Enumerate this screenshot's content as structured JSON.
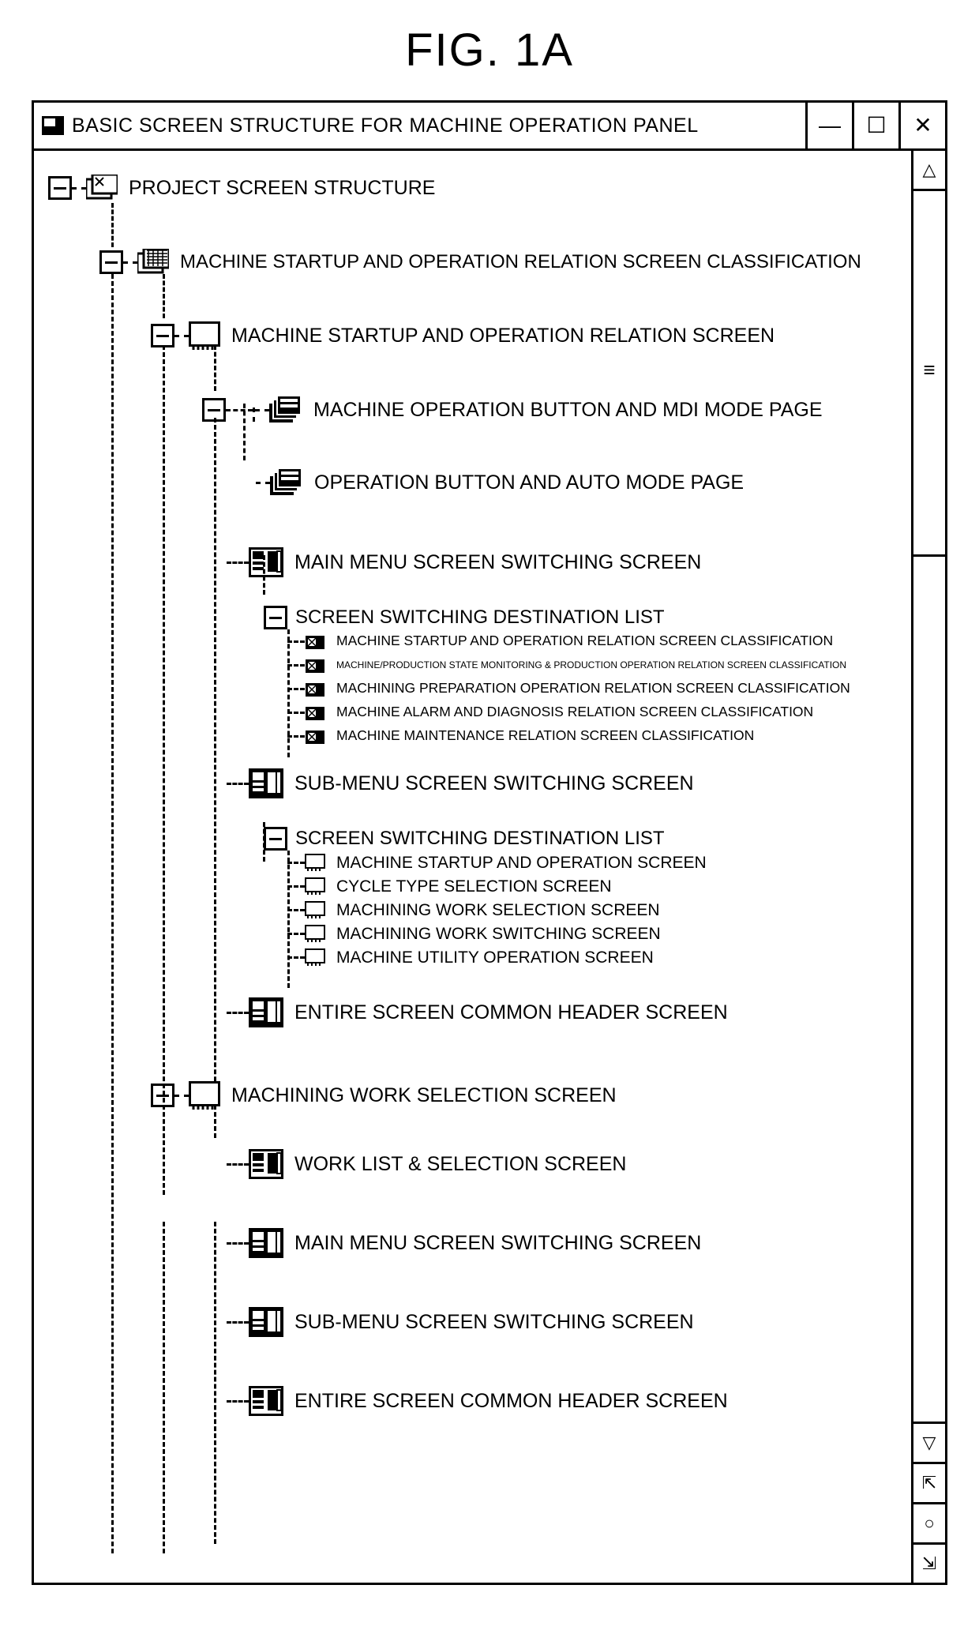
{
  "figure_title": "FIG. 1A",
  "window": {
    "title": "BASIC SCREEN STRUCTURE FOR MACHINE OPERATION PANEL",
    "minimize": "—",
    "maximize": "☐",
    "close": "✕"
  },
  "colors": {
    "stroke": "#000000",
    "background": "#ffffff"
  },
  "tree": {
    "root": {
      "label": "PROJECT SCREEN STRUCTURE",
      "icon": "folder-stack",
      "expanded": true
    },
    "level1_a": {
      "label": "MACHINE STARTUP AND OPERATION RELATION SCREEN CLASSIFICATION",
      "icon": "folder-pattern",
      "expanded": true
    },
    "level2_a": {
      "label": "MACHINE STARTUP AND OPERATION RELATION SCREEN",
      "icon": "screen",
      "expanded": true
    },
    "level3_pages": [
      {
        "label": "MACHINE OPERATION BUTTON AND MDI MODE PAGE",
        "icon": "page-stack"
      },
      {
        "label": "OPERATION BUTTON AND AUTO MODE PAGE",
        "icon": "page-stack"
      }
    ],
    "level3_main_menu": {
      "label": "MAIN MENU SCREEN SWITCHING SCREEN",
      "icon": "panel-light"
    },
    "switch_list_1": {
      "header": "SCREEN SWITCHING DESTINATION LIST",
      "items": [
        "MACHINE STARTUP AND OPERATION RELATION SCREEN CLASSIFICATION",
        "MACHINE/PRODUCTION STATE MONITORING & PRODUCTION OPERATION RELATION SCREEN CLASSIFICATION",
        "MACHINING PREPARATION OPERATION RELATION SCREEN CLASSIFICATION",
        "MACHINE ALARM AND DIAGNOSIS RELATION SCREEN CLASSIFICATION",
        "MACHINE MAINTENANCE RELATION SCREEN CLASSIFICATION"
      ]
    },
    "level3_sub_menu": {
      "label": "SUB-MENU SCREEN SWITCHING SCREEN",
      "icon": "panel-dark"
    },
    "switch_list_2": {
      "header": "SCREEN SWITCHING DESTINATION LIST",
      "items": [
        "MACHINE STARTUP AND OPERATION SCREEN",
        "CYCLE TYPE SELECTION SCREEN",
        "MACHINING WORK SELECTION SCREEN",
        "MACHINING WORK SWITCHING SCREEN",
        "MACHINE UTILITY OPERATION SCREEN"
      ]
    },
    "level3_header": {
      "label": "ENTIRE SCREEN COMMON HEADER SCREEN",
      "icon": "panel-dark"
    },
    "level2_b": {
      "label": "MACHINING WORK SELECTION SCREEN",
      "icon": "screen",
      "expanded": true
    },
    "level2_b_children": [
      {
        "label": "WORK LIST & SELECTION SCREEN",
        "icon": "panel-light"
      },
      {
        "label": "MAIN MENU SCREEN SWITCHING SCREEN",
        "icon": "panel-dark"
      },
      {
        "label": "SUB-MENU SCREEN SWITCHING SCREEN",
        "icon": "panel-dark"
      },
      {
        "label": "ENTIRE SCREEN COMMON HEADER SCREEN",
        "icon": "panel-light"
      }
    ]
  },
  "icon_svg": {
    "folder_stack": "<svg viewBox='0 0 40 34'><rect x='0' y='6' width='32' height='24' fill='none' stroke='#000' stroke-width='3'/><rect x='8' y='0' width='32' height='24' fill='#fff' stroke='#000' stroke-width='3'/><path d='M12 4 L22 14 M22 4 L12 14' stroke='#000' stroke-width='2'/></svg>",
    "folder_pattern": "<svg viewBox='0 0 40 34'><rect x='0' y='6' width='32' height='24' fill='none' stroke='#000' stroke-width='3'/><rect x='8' y='0' width='32' height='24' fill='#fff' stroke='#000' stroke-width='3'/><path d='M12 2 L38 2 M12 6 L38 6 M12 10 L38 10 M12 14 L38 14 M12 18 L38 18' stroke='#000' stroke-width='1.5'/><path d='M14 0 L14 22 M20 0 L20 22 M26 0 L26 22 M32 0 L32 22' stroke='#000' stroke-width='1.5'/></svg>",
    "screen": "<svg viewBox='0 0 40 36'><rect x='1.5' y='1.5' width='37' height='29' fill='#fff' stroke='#000' stroke-width='3'/><path d='M6 30 L6 36 M12 30 L12 36 M18 30 L18 36 M24 30 L24 36 M30 30 L30 36' stroke='#000' stroke-width='3'/></svg>",
    "page_stack": "<svg viewBox='0 0 42 36'><rect x='0' y='10' width='30' height='24' fill='#000'/><rect x='5' y='5' width='30' height='24' fill='#000' stroke='#fff' stroke-width='2'/><rect x='10' y='0' width='30' height='24' fill='#000' stroke='#fff' stroke-width='2'/><rect x='14' y='4' width='22' height='4' fill='#fff'/><rect x='14' y='11' width='22' height='4' fill='#fff'/></svg>",
    "panel_light": "<svg viewBox='0 0 44 38'><rect x='1.5' y='1.5' width='41' height='35' fill='#fff' stroke='#000' stroke-width='3'/><rect x='5' y='5' width='14' height='10' fill='#000'/><rect x='5' y='18' width='14' height='4' fill='#000'/><rect x='5' y='25' width='14' height='4' fill='#000'/><rect x='24' y='5' width='14' height='26' fill='#000'/><rect x='36' y='5' width='5' height='26' fill='#fff' stroke='#000' stroke-width='2'/></svg>",
    "panel_dark": "<svg viewBox='0 0 44 38'><rect x='1.5' y='1.5' width='41' height='35' fill='#000' stroke='#000' stroke-width='3'/><rect x='5' y='5' width='14' height='10' fill='#fff'/><rect x='5' y='18' width='14' height='4' fill='#fff'/><rect x='5' y='25' width='14' height='4' fill='#fff'/><rect x='24' y='5' width='10' height='26' fill='#fff'/><rect x='36' y='5' width='4' height='26' fill='#fff'/></svg>",
    "small_folder": "<svg viewBox='0 0 26 22'><rect x='1' y='4' width='24' height='17' fill='#000'/><rect x='4' y='7' width='10' height='10' fill='#fff'/><path d='M4 7 L14 17 M14 7 L4 17' stroke='#000' stroke-width='1.5'/></svg>",
    "small_screen": "<svg viewBox='0 0 26 22'><rect x='1' y='1' width='24' height='17' fill='#fff' stroke='#000' stroke-width='2'/><path d='M4 18 L4 22 M9 18 L9 22 M14 18 L14 22 M19 18 L19 22' stroke='#000' stroke-width='2'/></svg>",
    "scroll_up": "△",
    "scroll_down": "▽",
    "scroll_grip": "≡",
    "nav_top": "⤒",
    "nav_mid": "○",
    "nav_bottom": "⤓"
  }
}
